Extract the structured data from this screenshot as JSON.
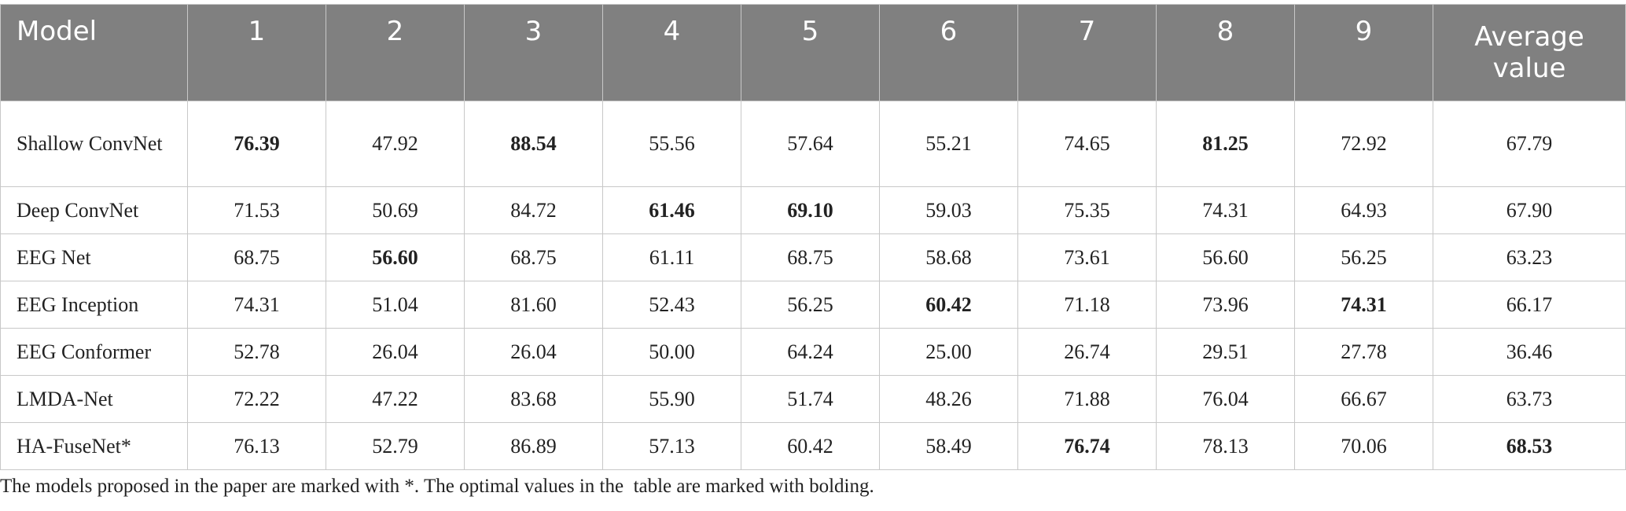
{
  "table": {
    "headers": [
      "Model",
      "1",
      "2",
      "3",
      "4",
      "5",
      "6",
      "7",
      "8",
      "9",
      "Average value"
    ],
    "rows": [
      {
        "model": "Shallow ConvNet",
        "values": [
          "76.39",
          "47.92",
          "88.54",
          "55.56",
          "57.64",
          "55.21",
          "74.65",
          "81.25",
          "72.92",
          "67.79"
        ],
        "bold": [
          0,
          2,
          7
        ]
      },
      {
        "model": "Deep ConvNet",
        "values": [
          "71.53",
          "50.69",
          "84.72",
          "61.46",
          "69.10",
          "59.03",
          "75.35",
          "74.31",
          "64.93",
          "67.90"
        ],
        "bold": [
          3,
          4
        ]
      },
      {
        "model": "EEG Net",
        "values": [
          "68.75",
          "56.60",
          "68.75",
          "61.11",
          "68.75",
          "58.68",
          "73.61",
          "56.60",
          "56.25",
          "63.23"
        ],
        "bold": [
          1
        ]
      },
      {
        "model": "EEG Inception",
        "values": [
          "74.31",
          "51.04",
          "81.60",
          "52.43",
          "56.25",
          "60.42",
          "71.18",
          "73.96",
          "74.31",
          "66.17"
        ],
        "bold": [
          5,
          8
        ]
      },
      {
        "model": "EEG Conformer",
        "values": [
          "52.78",
          "26.04",
          "26.04",
          "50.00",
          "64.24",
          "25.00",
          "26.74",
          "29.51",
          "27.78",
          "36.46"
        ],
        "bold": []
      },
      {
        "model": "LMDA-Net",
        "values": [
          "72.22",
          "47.22",
          "83.68",
          "55.90",
          "51.74",
          "48.26",
          "71.88",
          "76.04",
          "66.67",
          "63.73"
        ],
        "bold": []
      },
      {
        "model": "HA-FuseNet*",
        "values": [
          "76.13",
          "52.79",
          "86.89",
          "57.13",
          "60.42",
          "58.49",
          "76.74",
          "78.13",
          "70.06",
          "68.53"
        ],
        "bold": [
          6,
          9
        ]
      }
    ]
  },
  "footnote": "The models proposed in the paper are marked with *. The optimal values in the  table are marked with bolding.",
  "colors": {
    "header_bg": "#808080",
    "header_text": "#ffffff",
    "border": "#c8c8c8",
    "body_text": "#222222"
  }
}
